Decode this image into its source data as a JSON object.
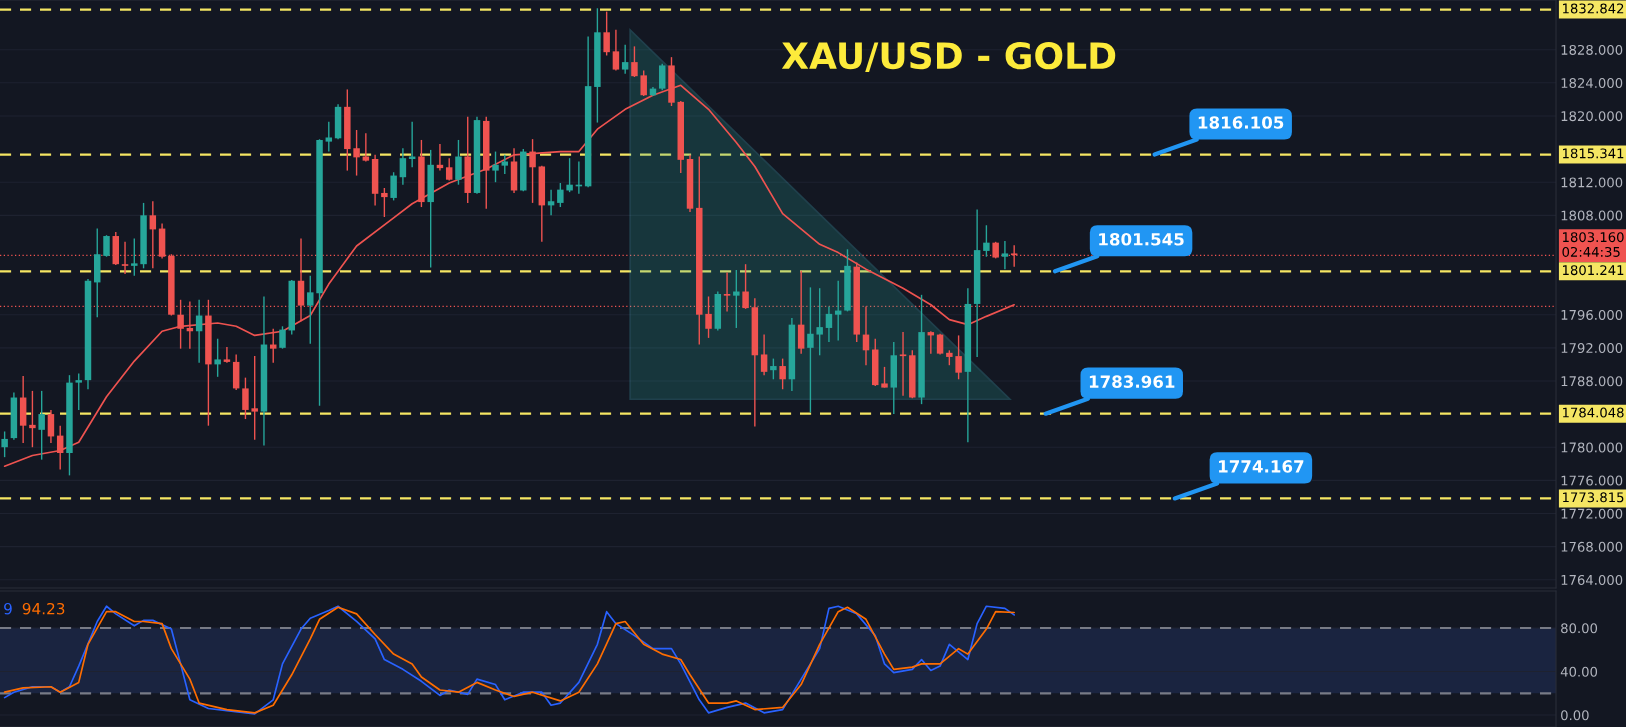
{
  "chart_data": [
    {
      "type": "candlestick",
      "title": "XAU/USD - GOLD",
      "categories": [
        null,
        null,
        null,
        null,
        null,
        null,
        null,
        null,
        null,
        null,
        null,
        null,
        null,
        null,
        null,
        null,
        null,
        null,
        null,
        null,
        null,
        null,
        null,
        null,
        null,
        null,
        null,
        null,
        null,
        null,
        null,
        null,
        null,
        null,
        null,
        null,
        null,
        null,
        null,
        null,
        null,
        null,
        null,
        null,
        null,
        null,
        null,
        null,
        null,
        null,
        null,
        null,
        null,
        null,
        null,
        null,
        null,
        null,
        null,
        null,
        null,
        null,
        null,
        null,
        null,
        null,
        null,
        null,
        null,
        null,
        null,
        null,
        null,
        null,
        null,
        null,
        null,
        null,
        null,
        null,
        null,
        null,
        null,
        null,
        null,
        null,
        null,
        null,
        null,
        null,
        null,
        null,
        null,
        null,
        null,
        null,
        null,
        null,
        null,
        null,
        null,
        null,
        null,
        null,
        null,
        null,
        null,
        null,
        null,
        null,
        null,
        null,
        null,
        null,
        null,
        null,
        null,
        null,
        null,
        null,
        null,
        null,
        null,
        null,
        null,
        null,
        null,
        null,
        null,
        null,
        null,
        null,
        null,
        null,
        null,
        null,
        null,
        null,
        null,
        null,
        null,
        null,
        null,
        null,
        null,
        null,
        null,
        null,
        null,
        null,
        null,
        null,
        null,
        null,
        null,
        null,
        null,
        null,
        null,
        null,
        null,
        null,
        null,
        null,
        null,
        null,
        null,
        null
      ],
      "ohlc": [
        [
          1780.0,
          1781.9,
          1778.8,
          1781.0
        ],
        [
          1781.1,
          1786.6,
          1780.9,
          1786.0
        ],
        [
          1786.0,
          1788.6,
          1780.5,
          1782.6
        ],
        [
          1782.7,
          1786.8,
          1780.0,
          1782.3
        ],
        [
          1782.1,
          1786.8,
          1778.5,
          1784.0
        ],
        [
          1784.0,
          1784.5,
          1780.5,
          1781.3
        ],
        [
          1781.4,
          1782.6,
          1777.3,
          1779.3
        ],
        [
          1779.3,
          1788.7,
          1776.6,
          1787.8
        ],
        [
          1787.8,
          1788.9,
          1784.5,
          1788.1
        ],
        [
          1788.1,
          1800.3,
          1787.0,
          1800.1
        ],
        [
          1799.9,
          1806.4,
          1795.7,
          1803.3
        ],
        [
          1803.1,
          1805.6,
          1803.0,
          1805.5
        ],
        [
          1805.5,
          1806.0,
          1802.0,
          1802.1
        ],
        [
          1802.1,
          1804.8,
          1800.9,
          1801.9
        ],
        [
          1801.9,
          1805.2,
          1800.7,
          1802.2
        ],
        [
          1802.1,
          1809.5,
          1801.6,
          1808.0
        ],
        [
          1808.0,
          1809.7,
          1801.6,
          1806.3
        ],
        [
          1806.4,
          1807.0,
          1802.8,
          1803.0
        ],
        [
          1803.1,
          1803.3,
          1795.9,
          1796.0
        ],
        [
          1796.0,
          1797.8,
          1791.9,
          1794.3
        ],
        [
          1794.4,
          1797.6,
          1791.9,
          1794.0
        ],
        [
          1794.0,
          1797.8,
          1790.2,
          1795.9
        ],
        [
          1795.9,
          1797.8,
          1782.6,
          1790.0
        ],
        [
          1790.0,
          1793.1,
          1788.5,
          1790.6
        ],
        [
          1790.6,
          1792.1,
          1790.2,
          1790.3
        ],
        [
          1790.3,
          1791.2,
          1786.9,
          1787.1
        ],
        [
          1787.1,
          1788.4,
          1783.4,
          1784.5
        ],
        [
          1784.7,
          1791.0,
          1780.9,
          1784.3
        ],
        [
          1784.3,
          1798.2,
          1780.2,
          1792.4
        ],
        [
          1792.4,
          1794.3,
          1790.2,
          1791.9
        ],
        [
          1792.0,
          1794.6,
          1791.9,
          1794.2
        ],
        [
          1794.1,
          1800.2,
          1793.6,
          1800.1
        ],
        [
          1800.1,
          1805.2,
          1795.2,
          1797.1
        ],
        [
          1797.1,
          1800.7,
          1792.5,
          1798.7
        ],
        [
          1798.6,
          1817.2,
          1785.0,
          1817.1
        ],
        [
          1816.9,
          1819.3,
          1815.7,
          1817.4
        ],
        [
          1817.3,
          1821.4,
          1817.2,
          1821.1
        ],
        [
          1821.1,
          1823.2,
          1813.4,
          1816.0
        ],
        [
          1816.1,
          1818.3,
          1812.8,
          1815.0
        ],
        [
          1815.1,
          1817.9,
          1814.5,
          1814.6
        ],
        [
          1814.8,
          1815.3,
          1809.2,
          1810.6
        ],
        [
          1810.7,
          1811.3,
          1807.8,
          1810.2
        ],
        [
          1810.1,
          1813.2,
          1809.8,
          1812.8
        ],
        [
          1812.6,
          1816.1,
          1811.7,
          1814.9
        ],
        [
          1814.8,
          1819.3,
          1813.8,
          1815.1
        ],
        [
          1815.1,
          1817.1,
          1809.0,
          1809.6
        ],
        [
          1809.6,
          1815.9,
          1801.7,
          1814.1
        ],
        [
          1814.1,
          1816.6,
          1813.4,
          1813.7
        ],
        [
          1813.8,
          1814.9,
          1812.2,
          1812.3
        ],
        [
          1812.3,
          1817.1,
          1811.7,
          1815.1
        ],
        [
          1815.1,
          1819.9,
          1809.5,
          1810.7
        ],
        [
          1810.7,
          1819.9,
          1810.6,
          1819.5
        ],
        [
          1819.4,
          1819.9,
          1808.8,
          1813.4
        ],
        [
          1813.4,
          1815.7,
          1812.0,
          1814.1
        ],
        [
          1814.0,
          1815.3,
          1813.0,
          1814.5
        ],
        [
          1814.5,
          1816.1,
          1810.7,
          1811.0
        ],
        [
          1811.0,
          1816.0,
          1810.9,
          1815.7
        ],
        [
          1815.7,
          1817.2,
          1809.5,
          1813.8
        ],
        [
          1813.9,
          1814.0,
          1804.8,
          1809.2
        ],
        [
          1809.2,
          1811.1,
          1808.0,
          1809.7
        ],
        [
          1809.5,
          1811.9,
          1809.0,
          1811.1
        ],
        [
          1811.0,
          1814.9,
          1810.8,
          1811.7
        ],
        [
          1811.5,
          1814.5,
          1810.6,
          1811.7
        ],
        [
          1811.5,
          1829.6,
          1811.4,
          1823.6
        ],
        [
          1823.5,
          1833.0,
          1819.2,
          1830.1
        ],
        [
          1830.1,
          1832.6,
          1827.3,
          1827.7
        ],
        [
          1827.8,
          1830.4,
          1825.5,
          1825.6
        ],
        [
          1825.6,
          1828.6,
          1825.1,
          1826.5
        ],
        [
          1826.5,
          1828.4,
          1824.7,
          1824.8
        ],
        [
          1824.9,
          1825.5,
          1822.4,
          1822.5
        ],
        [
          1822.5,
          1823.5,
          1822.4,
          1823.3
        ],
        [
          1823.3,
          1826.3,
          1823.1,
          1826.1
        ],
        [
          1826.1,
          1827.1,
          1821.2,
          1821.6
        ],
        [
          1821.7,
          1821.8,
          1813.1,
          1814.7
        ],
        [
          1814.8,
          1815.3,
          1808.4,
          1808.8
        ],
        [
          1808.9,
          1815.1,
          1792.4,
          1796.0
        ],
        [
          1796.1,
          1798.2,
          1793.2,
          1794.3
        ],
        [
          1794.3,
          1798.8,
          1794.1,
          1798.5
        ],
        [
          1798.5,
          1801.1,
          1796.4,
          1798.3
        ],
        [
          1798.3,
          1801.4,
          1794.4,
          1798.8
        ],
        [
          1798.8,
          1802.1,
          1796.7,
          1796.8
        ],
        [
          1796.9,
          1798.0,
          1782.5,
          1791.1
        ],
        [
          1791.2,
          1793.6,
          1788.7,
          1789.1
        ],
        [
          1789.3,
          1790.7,
          1788.2,
          1789.8
        ],
        [
          1789.8,
          1790.7,
          1787.0,
          1788.2
        ],
        [
          1788.2,
          1795.6,
          1786.8,
          1794.8
        ],
        [
          1794.8,
          1801.3,
          1791.3,
          1791.9
        ],
        [
          1792.0,
          1799.3,
          1784.2,
          1793.7
        ],
        [
          1793.6,
          1799.2,
          1791.1,
          1794.5
        ],
        [
          1794.4,
          1797.0,
          1792.7,
          1796.1
        ],
        [
          1796.0,
          1800.1,
          1792.9,
          1796.5
        ],
        [
          1796.5,
          1803.9,
          1796.4,
          1801.9
        ],
        [
          1801.8,
          1802.3,
          1792.7,
          1793.6
        ],
        [
          1793.6,
          1797.0,
          1789.9,
          1791.7
        ],
        [
          1791.8,
          1793.1,
          1787.4,
          1787.5
        ],
        [
          1787.7,
          1789.7,
          1787.2,
          1787.2
        ],
        [
          1787.2,
          1792.7,
          1784.0,
          1791.1
        ],
        [
          1791.2,
          1793.9,
          1786.2,
          1791.0
        ],
        [
          1791.1,
          1791.7,
          1785.9,
          1786.0
        ],
        [
          1786.0,
          1798.4,
          1785.2,
          1793.9
        ],
        [
          1793.9,
          1794.0,
          1791.3,
          1793.5
        ],
        [
          1793.6,
          1793.7,
          1791.2,
          1791.3
        ],
        [
          1791.4,
          1791.7,
          1789.9,
          1790.9
        ],
        [
          1791.0,
          1793.5,
          1788.2,
          1789.0
        ],
        [
          1789.1,
          1799.2,
          1780.6,
          1797.3
        ],
        [
          1797.3,
          1808.7,
          1790.9,
          1803.8
        ],
        [
          1803.7,
          1806.8,
          1803.0,
          1804.7
        ],
        [
          1804.7,
          1804.8,
          1802.8,
          1802.9
        ],
        [
          1803.0,
          1804.9,
          1801.5,
          1803.4
        ],
        [
          1803.4,
          1804.4,
          1801.8,
          1803.2
        ],
        null,
        null,
        null,
        null,
        null,
        null,
        null,
        null,
        null,
        null,
        null,
        null,
        null,
        null,
        null,
        null,
        null,
        null,
        null,
        null,
        null,
        null,
        null,
        null,
        null,
        null,
        null,
        null,
        null,
        null,
        null,
        null,
        null,
        null,
        null,
        null,
        null,
        null,
        null,
        null,
        null,
        null,
        null,
        null,
        null,
        null,
        null,
        null,
        null,
        null,
        null,
        null,
        null,
        null,
        null,
        null,
        null,
        null
      ],
      "series": [
        {
          "type": "line",
          "color": "#ef5350",
          "values": [
            1777.7,
            null,
            null,
            1779.0,
            null,
            null,
            1779.6,
            null,
            1780.6,
            null,
            null,
            1786.1,
            null,
            null,
            1790.4,
            null,
            null,
            1794.0,
            null,
            1794.6,
            null,
            null,
            null,
            1795.0,
            null,
            1794.6,
            null,
            1793.5,
            null,
            null,
            1794.0,
            null,
            null,
            1795.9,
            null,
            1799.7,
            null,
            null,
            1804.3,
            null,
            null,
            null,
            1807.7,
            null,
            1809.4,
            null,
            null,
            null,
            1811.9,
            null,
            null,
            null,
            1813.6,
            null,
            null,
            1815.3,
            null,
            null,
            null,
            null,
            1815.7,
            null,
            1815.7,
            null,
            1818.4,
            null,
            null,
            1820.8,
            null,
            null,
            1822.5,
            null,
            null,
            1823.7,
            null,
            null,
            1820.8,
            null,
            null,
            1816.8,
            null,
            1813.9,
            null,
            null,
            1808.2,
            null,
            null,
            null,
            1804.5,
            null,
            1803.5,
            null,
            null,
            1801.5,
            null,
            null,
            null,
            1799.2,
            null,
            null,
            1797.2,
            null,
            1795.4,
            null,
            1794.8,
            null,
            1795.8,
            null,
            null,
            1797.2,
            null,
            null,
            null,
            null,
            null,
            null,
            null,
            null,
            null,
            null,
            null,
            null,
            null,
            null,
            null,
            null,
            null,
            null,
            null,
            null,
            null,
            null,
            null,
            null,
            null,
            null,
            null,
            null,
            null,
            null,
            null,
            null,
            null,
            null,
            null,
            null,
            null,
            null,
            null,
            null,
            null,
            null,
            null,
            null,
            null,
            null,
            null,
            null,
            null,
            null,
            null,
            null,
            null,
            null,
            null,
            null,
            null,
            null
          ]
        }
      ],
      "ylim": [
        1763,
        1834
      ],
      "yticks": [
        {
          "value": 1764,
          "label": "1764.000"
        },
        {
          "value": 1768,
          "label": "1768.000"
        },
        {
          "value": 1772,
          "label": "1772.000"
        },
        {
          "value": 1776,
          "label": "1776.000"
        },
        {
          "value": 1780,
          "label": "1780.000"
        },
        {
          "value": 1788,
          "label": "1788.000"
        },
        {
          "value": 1792,
          "label": "1792.000"
        },
        {
          "value": 1796,
          "label": "1796.000"
        },
        {
          "value": 1808,
          "label": "1808.000"
        },
        {
          "value": 1812,
          "label": "1812.000"
        },
        {
          "value": 1820,
          "label": "1820.000"
        },
        {
          "value": 1824,
          "label": "1824.000"
        },
        {
          "value": 1828,
          "label": "1828.000"
        }
      ],
      "ref_lines": [
        {
          "axis": "y",
          "value": 1832.842,
          "label": "1832.842",
          "color": "#f5e663",
          "line_style": "dashed"
        },
        {
          "axis": "y",
          "value": 1815.341,
          "label": "1815.341",
          "color": "#f5e663",
          "line_style": "dashed"
        },
        {
          "axis": "y",
          "value": 1801.241,
          "label": "1801.241",
          "color": "#f5e663",
          "line_style": "dashed"
        },
        {
          "axis": "y",
          "value": 1784.048,
          "label": "1784.048",
          "color": "#f5e663",
          "line_style": "dashed"
        },
        {
          "axis": "y",
          "value": 1773.815,
          "label": "1773.815",
          "color": "#f5e663",
          "line_style": "dashed"
        },
        {
          "axis": "y",
          "value": 1803.16,
          "label": "1803.160\n02:44:35",
          "color": "#ef5350",
          "line_style": "dotted"
        },
        {
          "axis": "y",
          "value": 1797.0,
          "color": "#ef5350",
          "line_style": "dotted"
        }
      ],
      "annotations": [
        {
          "text": "1816.105",
          "y": 1815.341
        },
        {
          "text": "1801.545",
          "y": 1801.241
        },
        {
          "text": "1783.961",
          "y": 1784.048
        },
        {
          "text": "1774.167",
          "y": 1773.815
        }
      ],
      "grid": "y",
      "tick_labels": "y"
    },
    {
      "type": "line",
      "categories": [
        null,
        null,
        null,
        null,
        null,
        null,
        null,
        null,
        null,
        null,
        null,
        null,
        null,
        null,
        null,
        null,
        null,
        null,
        null,
        null,
        null,
        null,
        null,
        null,
        null,
        null,
        null,
        null,
        null,
        null,
        null,
        null,
        null,
        null,
        null,
        null,
        null,
        null,
        null,
        null,
        null,
        null,
        null,
        null,
        null,
        null,
        null,
        null,
        null,
        null,
        null,
        null,
        null,
        null,
        null,
        null,
        null,
        null,
        null,
        null,
        null,
        null,
        null,
        null,
        null,
        null,
        null,
        null,
        null,
        null,
        null,
        null,
        null,
        null,
        null,
        null,
        null,
        null,
        null,
        null,
        null,
        null,
        null,
        null,
        null,
        null,
        null,
        null,
        null,
        null,
        null,
        null,
        null,
        null,
        null,
        null,
        null,
        null,
        null,
        null,
        null,
        null,
        null,
        null,
        null,
        null,
        null,
        null,
        null,
        null,
        null,
        null,
        null,
        null,
        null,
        null,
        null,
        null,
        null,
        null,
        null,
        null,
        null,
        null,
        null,
        null,
        null,
        null,
        null,
        null,
        null,
        null,
        null,
        null,
        null,
        null,
        null,
        null,
        null,
        null,
        null,
        null,
        null,
        null,
        null,
        null,
        null,
        null,
        null,
        null,
        null,
        null,
        null,
        null,
        null,
        null,
        null,
        null,
        null,
        null,
        null,
        null,
        null,
        null,
        null,
        null,
        null,
        null
      ],
      "series": [
        {
          "color": "#2962ff",
          "values": [
            16,
            21,
            null,
            26,
            null,
            26,
            21,
            26,
            45,
            null,
            86,
            100,
            93,
            null,
            82,
            87,
            87,
            null,
            79,
            47,
            14,
            null,
            6,
            null,
            4,
            null,
            null,
            1,
            null,
            14,
            47,
            null,
            79,
            89,
            null,
            96,
            100,
            null,
            86,
            null,
            70,
            51,
            null,
            42,
            null,
            31,
            null,
            18,
            23,
            null,
            19,
            33,
            null,
            28,
            14,
            null,
            21,
            null,
            21,
            9,
            11,
            null,
            30,
            null,
            65,
            95,
            84,
            null,
            73,
            null,
            61,
            null,
            61,
            47,
            null,
            14,
            2,
            null,
            7,
            null,
            11,
            null,
            2,
            null,
            5,
            null,
            33,
            null,
            61,
            98,
            100,
            null,
            93,
            null,
            73,
            47,
            39,
            null,
            42,
            51,
            41,
            45,
            65,
            null,
            51,
            84,
            100,
            null,
            98,
            92,
            null,
            null,
            null,
            null,
            null,
            null,
            null,
            null,
            null,
            null,
            null,
            null,
            null,
            null,
            null,
            null,
            null,
            null,
            null,
            null,
            null,
            null,
            null,
            null,
            null,
            null,
            null,
            null,
            null,
            null,
            null,
            null,
            null,
            null,
            null,
            null,
            null,
            null,
            null,
            null,
            null,
            null,
            null,
            null,
            null,
            null,
            null,
            null,
            null,
            null,
            null,
            null,
            null,
            null,
            null,
            null,
            null,
            null
          ]
        },
        {
          "color": "#ff6d00",
          "values": [
            21,
            null,
            25,
            null,
            null,
            26,
            21,
            null,
            30,
            65,
            null,
            95,
            95,
            null,
            86,
            86,
            null,
            84,
            61,
            null,
            33,
            11,
            null,
            null,
            5,
            null,
            null,
            2,
            null,
            9,
            null,
            37,
            null,
            70,
            88,
            null,
            99,
            null,
            93,
            null,
            74,
            null,
            56,
            null,
            47,
            35,
            null,
            23,
            null,
            21,
            null,
            30,
            null,
            23,
            null,
            17,
            null,
            21,
            null,
            null,
            13,
            null,
            21,
            null,
            47,
            null,
            84,
            86,
            null,
            65,
            null,
            56,
            null,
            51,
            37,
            null,
            11,
            null,
            11,
            13,
            null,
            5,
            null,
            null,
            7,
            null,
            28,
            null,
            65,
            null,
            95,
            99,
            null,
            88,
            null,
            56,
            42,
            null,
            44,
            47,
            null,
            47,
            null,
            61,
            56,
            null,
            79,
            95,
            null,
            94.23,
            null,
            null,
            null,
            null,
            null,
            null,
            null,
            null,
            null,
            null,
            null,
            null,
            null,
            null,
            null,
            null,
            null,
            null,
            null,
            null,
            null,
            null,
            null,
            null,
            null,
            null,
            null,
            null,
            null,
            null,
            null,
            null,
            null,
            null,
            null,
            null,
            null,
            null,
            null,
            null,
            null,
            null,
            null,
            null,
            null,
            null,
            null,
            null,
            null,
            null,
            null,
            null,
            null,
            null,
            null,
            null,
            null,
            null
          ]
        }
      ],
      "ylim": [
        -11,
        114
      ],
      "yticks": [
        {
          "value": 0,
          "label": "0.00"
        },
        {
          "value": 40,
          "label": "40.00"
        },
        {
          "value": 80,
          "label": "80.00"
        }
      ],
      "ref_lines": [
        {
          "axis": "y",
          "value": 80,
          "color": "#787b86",
          "line_style": "dashed"
        },
        {
          "axis": "y",
          "value": 20,
          "color": "#787b86",
          "line_style": "dashed"
        }
      ],
      "bands": [
        {
          "axis": "y",
          "from": 20,
          "to": 80,
          "color": "#1a2440"
        }
      ],
      "annotations": [
        "9",
        "94.23"
      ],
      "grid": "y",
      "tick_labels": "y"
    }
  ]
}
